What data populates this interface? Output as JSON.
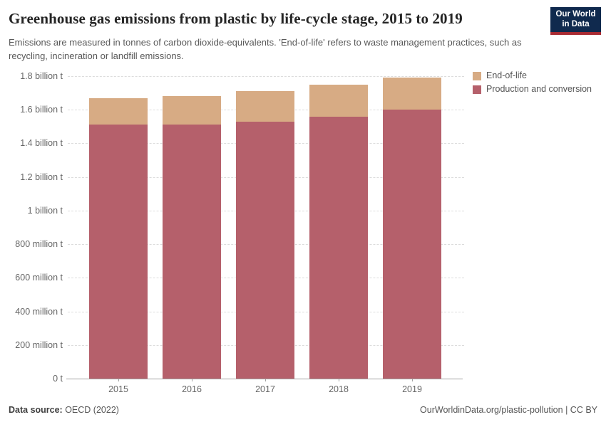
{
  "header": {
    "title": "Greenhouse gas emissions from plastic by life-cycle stage, 2015 to 2019",
    "subtitle": "Emissions are measured in tonnes of carbon dioxide-equivalents. 'End-of-life' refers to waste management practices, such as recycling, incineration or landfill emissions."
  },
  "logo": {
    "line1": "Our World",
    "line2": "in Data",
    "bg_color": "#102a4e",
    "accent_color": "#a82b33"
  },
  "chart_data": {
    "type": "bar",
    "stacked": true,
    "title": "Greenhouse gas emissions from plastic by life-cycle stage, 2015 to 2019",
    "categories": [
      "2015",
      "2016",
      "2017",
      "2018",
      "2019"
    ],
    "series": [
      {
        "name": "Production and conversion",
        "color": "#b5606b",
        "values": [
          1.51,
          1.51,
          1.53,
          1.56,
          1.6
        ]
      },
      {
        "name": "End-of-life",
        "color": "#d7ab84",
        "values": [
          0.16,
          0.17,
          0.18,
          0.19,
          0.19
        ]
      }
    ],
    "legend_order_top_to_bottom": [
      "End-of-life",
      "Production and conversion"
    ],
    "value_unit": "billion tonnes of carbon dioxide-equivalents",
    "ylim": [
      0,
      1.8
    ],
    "yticks": [
      {
        "value": 0,
        "label": "0 t"
      },
      {
        "value": 0.2,
        "label": "200 million t"
      },
      {
        "value": 0.4,
        "label": "400 million t"
      },
      {
        "value": 0.6,
        "label": "600 million t"
      },
      {
        "value": 0.8,
        "label": "800 million t"
      },
      {
        "value": 1.0,
        "label": "1 billion t"
      },
      {
        "value": 1.2,
        "label": "1.2 billion t"
      },
      {
        "value": 1.4,
        "label": "1.4 billion t"
      },
      {
        "value": 1.6,
        "label": "1.6 billion t"
      },
      {
        "value": 1.8,
        "label": "1.8 billion t"
      }
    ],
    "grid": "horizontal-dashed",
    "legend_position": "right-top"
  },
  "footer": {
    "source_label": "Data source:",
    "source_value": " OECD (2022)",
    "link": "OurWorldinData.org/plastic-pollution",
    "separator": " | ",
    "license": "CC BY"
  }
}
